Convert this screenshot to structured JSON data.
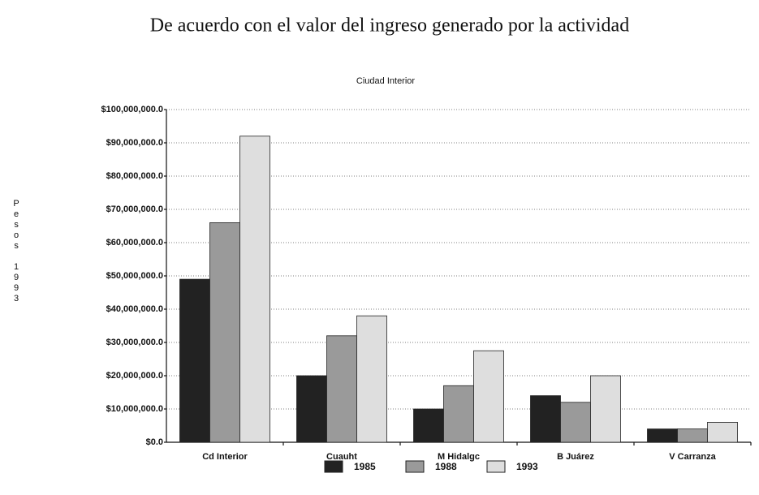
{
  "chart_data": {
    "type": "bar",
    "title": "De acuerdo con el valor del ingreso generado por la actividad",
    "subtitle": "Ciudad Interior",
    "y_label": "Pesos 1993",
    "categories": [
      "Cd Interior",
      "Cuauht",
      "M Hidalgc",
      "B Juárez",
      "V Carranza"
    ],
    "series": [
      {
        "name": "1985",
        "color": "#222222",
        "values": [
          49000000,
          20000000,
          10000000,
          14000000,
          4000000
        ]
      },
      {
        "name": "1988",
        "color": "#9a9a9a",
        "values": [
          66000000,
          32000000,
          17000000,
          12000000,
          4000000
        ]
      },
      {
        "name": "1993",
        "color": "#dedede",
        "values": [
          92000000,
          38000000,
          27500000,
          20000000,
          6000000
        ]
      }
    ],
    "ylim": [
      0,
      100000000
    ],
    "yticks": [
      {
        "value": 0,
        "label": "$0.0"
      },
      {
        "value": 10000000,
        "label": "$10,000,000.0"
      },
      {
        "value": 20000000,
        "label": "$20,000,000.0"
      },
      {
        "value": 30000000,
        "label": "$30,000,000.0"
      },
      {
        "value": 40000000,
        "label": "$40,000,000.0"
      },
      {
        "value": 50000000,
        "label": "$50,000,000.0"
      },
      {
        "value": 60000000,
        "label": "$60,000,000.0"
      },
      {
        "value": 70000000,
        "label": "$70,000,000.0"
      },
      {
        "value": 80000000,
        "label": "$80,000,000.0"
      },
      {
        "value": 90000000,
        "label": "$90,000,000.0"
      },
      {
        "value": 100000000,
        "label": "$100,000,000.0"
      }
    ],
    "grid": true
  }
}
